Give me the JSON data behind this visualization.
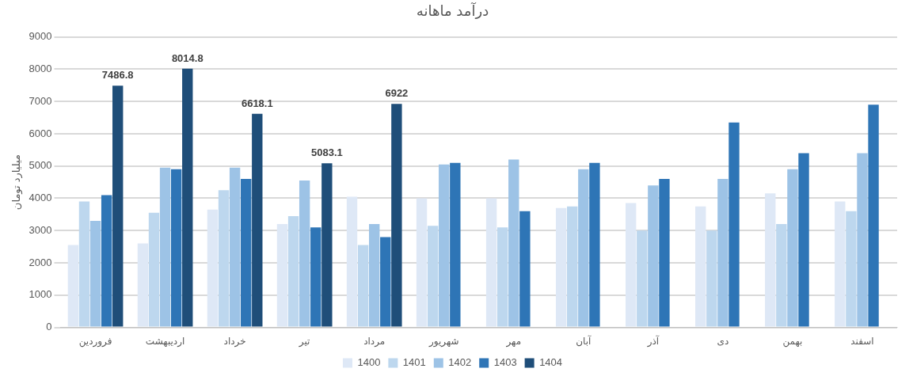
{
  "chart_data": {
    "type": "bar",
    "title": "درآمد ماهانه",
    "ylabel": "میلیارد تومان",
    "categories": [
      "فروردین",
      "اردیبهشت",
      "خرداد",
      "تیر",
      "مرداد",
      "شهریور",
      "مهر",
      "آبان",
      "آذر",
      "دی",
      "بهمن",
      "اسفند"
    ],
    "series": [
      {
        "name": "1400",
        "color": "#dee8f6",
        "values": [
          2550,
          2600,
          3650,
          3200,
          4050,
          4000,
          4000,
          3700,
          3850,
          3750,
          4150,
          3900
        ]
      },
      {
        "name": "1401",
        "color": "#bdd7ee",
        "values": [
          3900,
          3550,
          4250,
          3450,
          2550,
          3150,
          3100,
          3750,
          3000,
          3000,
          3200,
          3600
        ]
      },
      {
        "name": "1402",
        "color": "#9dc3e6",
        "values": [
          3300,
          4950,
          4950,
          4550,
          3200,
          5050,
          5200,
          4900,
          4400,
          4600,
          4900,
          5400
        ]
      },
      {
        "name": "1403",
        "color": "#2e75b6",
        "values": [
          4100,
          4900,
          4600,
          3100,
          2800,
          5100,
          3600,
          5100,
          4600,
          6350,
          5400,
          6900
        ]
      },
      {
        "name": "1404",
        "color": "#1f4e79",
        "values": [
          7486.8,
          8014.8,
          6618.1,
          5083.1,
          6922,
          null,
          null,
          null,
          null,
          null,
          null,
          null
        ],
        "value_labels": [
          "7486.8",
          "8014.8",
          "6618.1",
          "5083.1",
          "6922",
          null,
          null,
          null,
          null,
          null,
          null,
          null
        ]
      }
    ],
    "ylim": [
      0,
      9000
    ],
    "yticks": [
      0,
      1000,
      2000,
      3000,
      4000,
      5000,
      6000,
      7000,
      8000,
      9000
    ],
    "grid": "y",
    "legend": "bottom"
  }
}
